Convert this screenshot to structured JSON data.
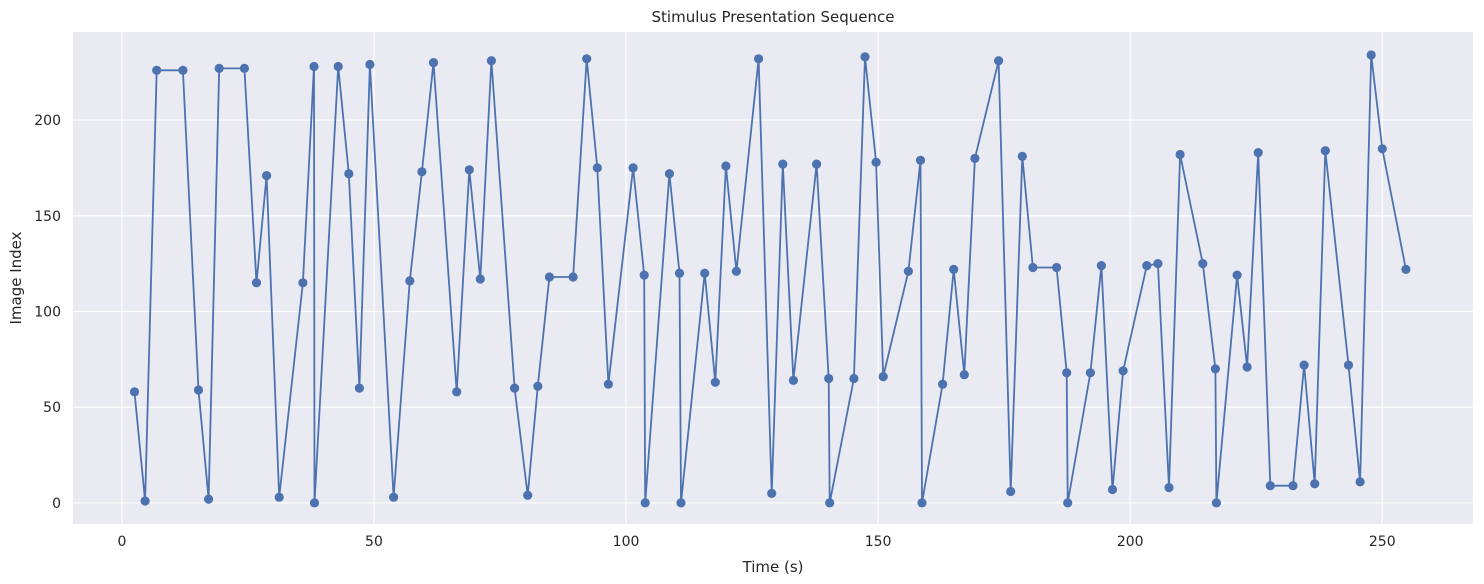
{
  "chart_data": {
    "type": "line",
    "title": "Stimulus Presentation Sequence",
    "xlabel": "Time (s)",
    "ylabel": "Image Index",
    "xlim": [
      -9.7,
      268
    ],
    "ylim": [
      -11,
      246
    ],
    "xticks": [
      0,
      50,
      100,
      150,
      200,
      250
    ],
    "yticks": [
      0,
      50,
      100,
      150,
      200
    ],
    "grid": true,
    "colors": {
      "plot_bg": "#eaeaf2",
      "series": "#4c72b0",
      "grid": "#ffffff"
    },
    "series": [
      {
        "markers": true,
        "x": [
          2.5,
          4.6,
          6.9,
          12.1,
          15.2,
          17.2,
          19.3,
          24.3,
          26.7,
          28.7,
          31.2,
          35.9,
          38.1,
          38.2,
          42.9,
          45.0,
          47.1,
          49.2,
          53.9,
          57.1,
          59.5,
          61.8,
          66.4,
          68.9,
          71.1,
          73.3,
          77.9,
          80.5,
          82.5,
          84.8,
          89.5,
          92.2,
          94.3,
          96.5,
          101.4,
          103.6,
          103.8,
          108.6,
          110.6,
          110.9,
          115.6,
          117.7,
          119.8,
          121.9,
          126.3,
          128.9,
          131.1,
          133.2,
          137.8,
          140.2,
          140.4,
          145.2,
          147.4,
          149.6,
          151.0,
          156.0,
          158.4,
          158.7,
          162.8,
          165.0,
          167.1,
          169.2,
          173.9,
          176.3,
          178.6,
          180.7,
          185.4,
          187.4,
          187.6,
          192.1,
          194.3,
          196.5,
          198.6,
          203.3,
          205.5,
          207.7,
          209.9,
          214.4,
          216.9,
          217.1,
          221.2,
          223.2,
          225.4,
          227.8,
          232.3,
          234.5,
          236.6,
          238.7,
          243.3,
          245.6,
          247.8,
          250.0,
          254.7
        ],
        "y": [
          58,
          1,
          226,
          226,
          59,
          2,
          227,
          227,
          115,
          171,
          3,
          115,
          228,
          0,
          228,
          172,
          60,
          229,
          3,
          116,
          173,
          230,
          58,
          174,
          117,
          231,
          60,
          4,
          61,
          118,
          118,
          232,
          175,
          62,
          175,
          119,
          0,
          172,
          120,
          0,
          120,
          63,
          176,
          121,
          232,
          5,
          177,
          64,
          177,
          65,
          0,
          65,
          233,
          178,
          66,
          121,
          179,
          0,
          62,
          122,
          67,
          180,
          231,
          6,
          181,
          123,
          123,
          68,
          0,
          68,
          124,
          7,
          69,
          124,
          125,
          8,
          182,
          125,
          70,
          0,
          119,
          71,
          183,
          9,
          9,
          72,
          10,
          184,
          72,
          11,
          234,
          185,
          122
        ]
      }
    ]
  }
}
